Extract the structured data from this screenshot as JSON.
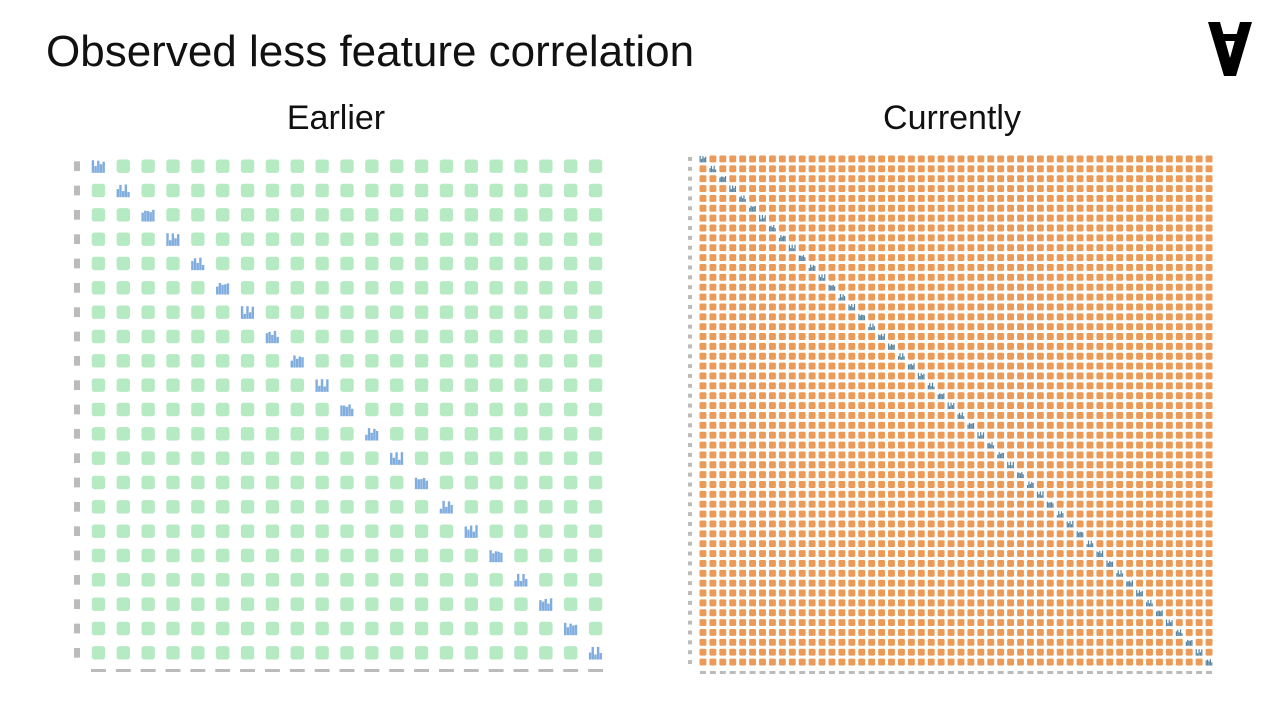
{
  "slide": {
    "title": "Observed less feature correlation"
  },
  "logo": {
    "icon": "inverted-a-logo-icon",
    "color": "#000000"
  },
  "panels": [
    {
      "title": "Earlier",
      "scatter_color": "#a8e6b8",
      "hist_color": "#6a9fd8"
    },
    {
      "title": "Currently",
      "scatter_color": "#e8883a",
      "hist_color": "#3d6f8f"
    }
  ]
}
